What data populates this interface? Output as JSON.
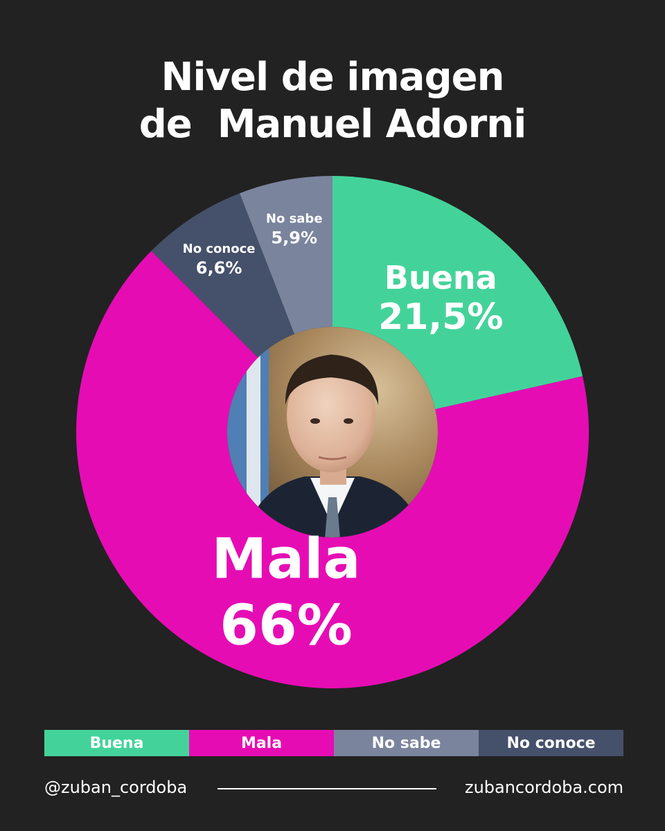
{
  "header": {
    "title_line1": "Nivel de imagen",
    "title_line2": "de  Manuel Adorni"
  },
  "chart_data": {
    "type": "donut",
    "title": "Nivel de imagen de Manuel Adorni",
    "slices": [
      {
        "label": "Buena",
        "value": 21.5,
        "display": "21,5%",
        "color": "#43d39a"
      },
      {
        "label": "Mala",
        "value": 66,
        "display": "66%",
        "color": "#e60cb4"
      },
      {
        "label": "No conoce",
        "value": 6.6,
        "display": "6,6%",
        "color": "#45506a"
      },
      {
        "label": "No sabe",
        "value": 5.9,
        "display": "5,9%",
        "color": "#7a849d"
      }
    ],
    "legend": {
      "position": "bottom",
      "items": [
        {
          "label": "Buena",
          "color": "#43d39a"
        },
        {
          "label": "Mala",
          "color": "#e60cb4"
        },
        {
          "label": "No sabe",
          "color": "#7a849d"
        },
        {
          "label": "No conoce",
          "color": "#45506a"
        }
      ]
    },
    "center_image": "photo of Manuel Adorni"
  },
  "footer": {
    "handle": "@zuban_cordoba",
    "website": "zubancordoba.com"
  },
  "colors": {
    "background": "#222222",
    "text": "#ffffff"
  }
}
